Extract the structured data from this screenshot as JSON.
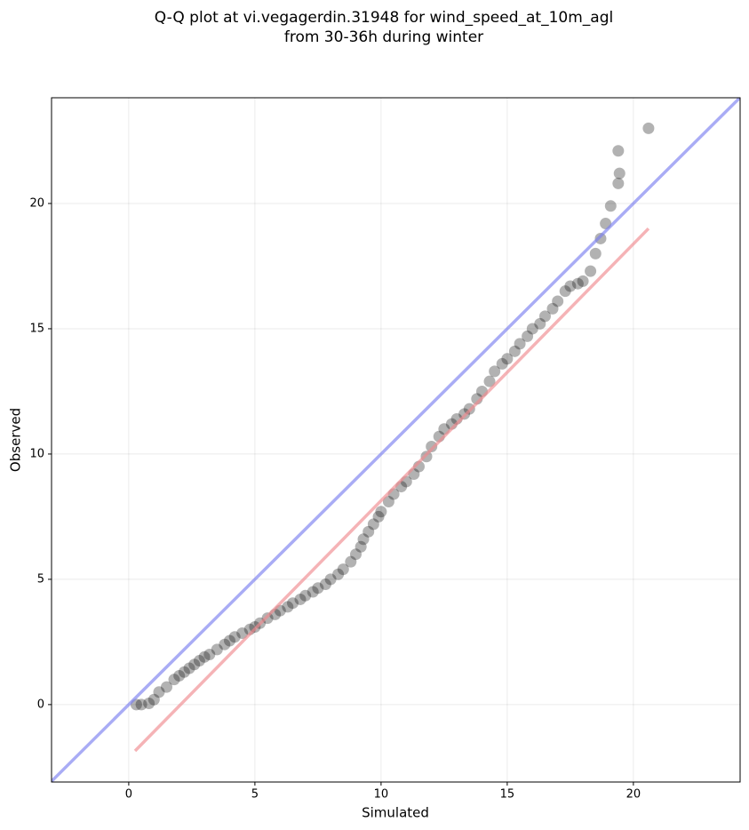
{
  "chart_data": {
    "type": "scatter",
    "title": [
      "Q-Q plot at vi.vegagerdin.31948 for wind_speed_at_10m_agl",
      "from 30-36h during winter"
    ],
    "x_label": "Simulated",
    "y_label": "Observed",
    "xlim": [
      -3.06,
      24.23
    ],
    "ylim": [
      -3.09,
      24.22
    ],
    "xticks": [
      0,
      5,
      10,
      15,
      20
    ],
    "yticks": [
      0,
      5,
      10,
      15,
      20
    ],
    "grid": true,
    "color": "#000000",
    "alpha": 0.3,
    "x": [
      0.3,
      0.5,
      0.8,
      1.0,
      1.2,
      1.5,
      1.8,
      2.0,
      2.2,
      2.4,
      2.6,
      2.8,
      3.0,
      3.2,
      3.5,
      3.8,
      4.0,
      4.2,
      4.5,
      4.8,
      5.0,
      5.2,
      5.5,
      5.8,
      6.0,
      6.3,
      6.5,
      6.8,
      7.0,
      7.3,
      7.5,
      7.8,
      8.0,
      8.3,
      8.5,
      8.8,
      9.0,
      9.2,
      9.3,
      9.5,
      9.7,
      9.9,
      10.0,
      10.3,
      10.5,
      10.8,
      11.0,
      11.3,
      11.5,
      11.8,
      12.0,
      12.3,
      12.5,
      12.8,
      13.0,
      13.3,
      13.5,
      13.8,
      14.0,
      14.3,
      14.5,
      14.8,
      15.0,
      15.3,
      15.5,
      15.8,
      16.0,
      16.3,
      16.5,
      16.8,
      17.0,
      17.3,
      17.5,
      17.8,
      18.0,
      18.3,
      18.5,
      18.7,
      18.9,
      19.1,
      19.4,
      19.45,
      19.4,
      20.6
    ],
    "y": [
      0,
      0,
      0.05,
      0.2,
      0.5,
      0.7,
      1.0,
      1.15,
      1.3,
      1.45,
      1.6,
      1.75,
      1.9,
      2.0,
      2.2,
      2.4,
      2.55,
      2.7,
      2.85,
      3.0,
      3.1,
      3.25,
      3.45,
      3.6,
      3.75,
      3.9,
      4.05,
      4.2,
      4.35,
      4.5,
      4.65,
      4.8,
      5.0,
      5.2,
      5.4,
      5.7,
      6.0,
      6.3,
      6.6,
      6.9,
      7.2,
      7.5,
      7.7,
      8.1,
      8.4,
      8.7,
      8.9,
      9.2,
      9.5,
      9.9,
      10.3,
      10.7,
      11.0,
      11.2,
      11.4,
      11.6,
      11.8,
      12.2,
      12.5,
      12.9,
      13.3,
      13.6,
      13.8,
      14.1,
      14.4,
      14.7,
      15.0,
      15.2,
      15.5,
      15.8,
      16.1,
      16.5,
      16.7,
      16.8,
      16.9,
      17.3,
      18.0,
      18.6,
      19.2,
      19.9,
      20.8,
      21.2,
      22.1,
      23.0
    ],
    "lines": [
      {
        "color": "#7b7ff0",
        "x": [
          -3.06,
          24.23
        ],
        "y": [
          -3.06,
          24.23
        ]
      },
      {
        "color": "#f08a8f",
        "x": [
          0.25,
          20.6
        ],
        "y": [
          -1.85,
          19.0
        ]
      }
    ]
  }
}
